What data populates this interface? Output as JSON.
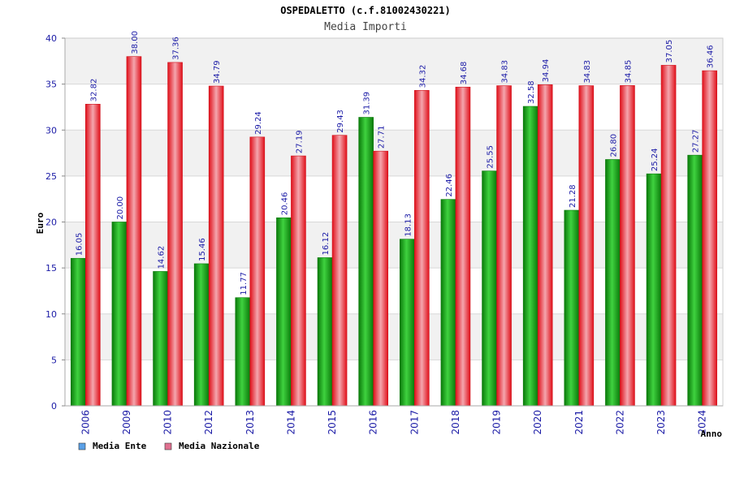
{
  "chart_data": {
    "type": "bar",
    "title": "OSPEDALETTO (c.f.81002430221)",
    "subtitle": "Media Importi",
    "xlabel": "Anno",
    "ylabel": "Euro",
    "ylim": [
      0,
      40
    ],
    "yticks": [
      0,
      5,
      10,
      15,
      20,
      25,
      30,
      35,
      40
    ],
    "grid": true,
    "legend_position": "bottom-left",
    "categories": [
      "2006",
      "2009",
      "2010",
      "2012",
      "2013",
      "2014",
      "2015",
      "2016",
      "2017",
      "2018",
      "2019",
      "2020",
      "2021",
      "2022",
      "2023",
      "2024"
    ],
    "series": [
      {
        "name": "Media Ente",
        "color": "#0a9e0a",
        "legend_color": "#5aa0e6",
        "values": [
          16.05,
          20.0,
          14.62,
          15.46,
          11.77,
          20.46,
          16.12,
          31.39,
          18.13,
          22.46,
          25.55,
          32.58,
          21.28,
          26.8,
          25.24,
          27.27
        ],
        "labels": [
          "16.05",
          "20.00",
          "14.62",
          "15.46",
          "11.77",
          "20.46",
          "16.12",
          "31.39",
          "18.13",
          "22.46",
          "25.55",
          "32.58",
          "21.28",
          "26.80",
          "25.24",
          "27.27"
        ]
      },
      {
        "name": "Media Nazionale",
        "color": "#e8202a",
        "legend_color": "#e07090",
        "values": [
          32.82,
          38.0,
          37.36,
          34.79,
          29.24,
          27.19,
          29.43,
          27.71,
          34.32,
          34.68,
          34.83,
          34.94,
          34.83,
          34.85,
          37.05,
          36.46
        ],
        "labels": [
          "32.82",
          "38.00",
          "37.36",
          "34.79",
          "29.24",
          "27.19",
          "29.43",
          "27.71",
          "34.32",
          "34.68",
          "34.83",
          "34.94",
          "34.83",
          "34.85",
          "37.05",
          "36.46"
        ]
      }
    ]
  }
}
